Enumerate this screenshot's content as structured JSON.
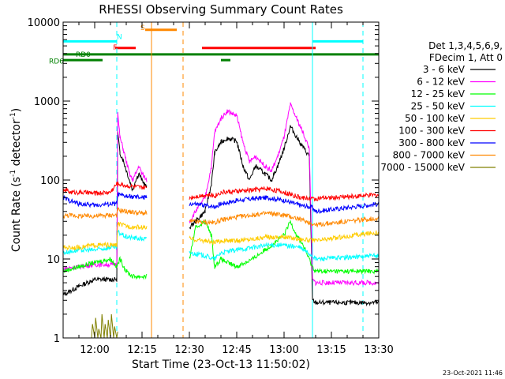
{
  "chart_data": {
    "type": "line",
    "title": "RHESSI Observing Summary Count Rates",
    "xlabel": "Start Time (23-Oct-13 11:50:02)",
    "ylabel_main": "Count Rate (s",
    "ylabel_exp1": "-1",
    "ylabel_mid": " detector",
    "ylabel_exp2": "-1",
    "ylabel_end": ")",
    "x_unit": "minutes since 11:50",
    "xlim": [
      0,
      100
    ],
    "ylim": [
      1,
      10000
    ],
    "y_scale": "log",
    "x_ticks": [
      {
        "label": "12:00",
        "x": 10
      },
      {
        "label": "12:15",
        "x": 25
      },
      {
        "label": "12:30",
        "x": 40
      },
      {
        "label": "12:45",
        "x": 55
      },
      {
        "label": "13:00",
        "x": 70
      },
      {
        "label": "13:15",
        "x": 85
      },
      {
        "label": "13:30",
        "x": 100
      }
    ],
    "y_ticks": [
      {
        "label": "1",
        "y": 1
      },
      {
        "label": "10",
        "y": 10
      },
      {
        "label": "100",
        "y": 100
      },
      {
        "label": "1000",
        "y": 1000
      },
      {
        "label": "10000",
        "y": 10000
      }
    ],
    "legend": {
      "header1": "Det 1,3,4,5,6,9,",
      "header2": "FDecim 1, Att 0",
      "position": "right"
    },
    "series": [
      {
        "name": "3 - 6 keV",
        "color": "#000000",
        "x": [
          0,
          5,
          10,
          17,
          17.3,
          18,
          19,
          21,
          22,
          23,
          24,
          25,
          26.5,
          38,
          38.5,
          40,
          42,
          45,
          47,
          48,
          50,
          52,
          55,
          57,
          59,
          61,
          64,
          66,
          68,
          70,
          72,
          74,
          76,
          78,
          79,
          80,
          100
        ],
        "y": [
          3.5,
          4.5,
          5.5,
          5.5,
          400,
          220,
          180,
          100,
          75,
          100,
          120,
          100,
          80,
          null,
          null,
          25,
          30,
          40,
          90,
          220,
          300,
          340,
          310,
          150,
          100,
          150,
          120,
          100,
          150,
          250,
          480,
          350,
          260,
          200,
          3,
          2.8,
          2.8
        ]
      },
      {
        "name": "6 - 12 keV",
        "color": "#ff00ff",
        "x": [
          0,
          5,
          10,
          17,
          17.3,
          18,
          19,
          21,
          22,
          23,
          24,
          25,
          26.5,
          38,
          38.5,
          40,
          42,
          45,
          47,
          48,
          50,
          52,
          55,
          57,
          59,
          61,
          64,
          66,
          68,
          70,
          72,
          74,
          76,
          78,
          79,
          80,
          100
        ],
        "y": [
          7.5,
          8,
          8.5,
          8.5,
          700,
          350,
          250,
          120,
          100,
          120,
          150,
          120,
          100,
          null,
          null,
          30,
          40,
          60,
          150,
          400,
          600,
          750,
          650,
          300,
          170,
          200,
          150,
          130,
          200,
          350,
          900,
          600,
          400,
          250,
          5.5,
          5,
          5
        ]
      },
      {
        "name": "12 - 25 keV",
        "color": "#00ff00",
        "x": [
          0,
          5,
          10,
          15,
          17,
          18,
          20,
          22,
          25,
          26.5,
          38,
          38.5,
          40,
          42,
          45,
          47,
          48,
          50,
          52,
          55,
          60,
          65,
          70,
          72,
          74,
          76,
          79,
          80,
          100
        ],
        "y": [
          7,
          8,
          9,
          10,
          8,
          10,
          7,
          6,
          6,
          6,
          null,
          null,
          10,
          25,
          30,
          20,
          8,
          10,
          9,
          8,
          10,
          14,
          20,
          30,
          20,
          15,
          8,
          7,
          7
        ]
      },
      {
        "name": "25 - 50 keV",
        "color": "#00ffff",
        "x": [
          0,
          5,
          10,
          15,
          17,
          17.3,
          20,
          25,
          26.5,
          38,
          38.5,
          40,
          45,
          48,
          50,
          55,
          60,
          65,
          70,
          75,
          79,
          80,
          100
        ],
        "y": [
          12,
          13,
          13,
          14,
          14,
          22,
          19,
          18,
          18,
          null,
          null,
          12,
          11,
          10,
          12,
          13,
          14,
          15,
          15,
          14,
          11,
          10,
          11
        ]
      },
      {
        "name": "50 - 100 keV",
        "color": "#ffcc00",
        "x": [
          0,
          5,
          10,
          15,
          17,
          17.3,
          20,
          25,
          26.5,
          38,
          38.5,
          40,
          45,
          48,
          50,
          55,
          60,
          65,
          70,
          75,
          79,
          80,
          100
        ],
        "y": [
          14,
          14,
          15,
          15,
          15,
          28,
          26,
          25,
          25,
          null,
          null,
          18,
          17,
          16,
          17,
          17,
          18,
          19,
          19,
          18,
          17,
          17,
          22
        ]
      },
      {
        "name": "100 - 300 keV",
        "color": "#ff0000",
        "x": [
          0,
          1,
          2,
          5,
          10,
          15,
          17,
          17.3,
          20,
          25,
          26.5,
          38,
          38.5,
          40,
          45,
          48,
          50,
          55,
          60,
          65,
          70,
          75,
          79,
          80,
          100
        ],
        "y": [
          70,
          75,
          70,
          70,
          68,
          70,
          90,
          90,
          85,
          80,
          80,
          null,
          null,
          60,
          65,
          63,
          70,
          72,
          75,
          78,
          70,
          60,
          58,
          58,
          65
        ]
      },
      {
        "name": "300 - 800 keV",
        "color": "#0000ff",
        "x": [
          0,
          2,
          5,
          10,
          15,
          17,
          17.3,
          20,
          25,
          26.5,
          38,
          38.5,
          40,
          45,
          48,
          50,
          55,
          60,
          65,
          70,
          75,
          79,
          80,
          100
        ],
        "y": [
          60,
          55,
          50,
          48,
          50,
          50,
          65,
          62,
          60,
          60,
          null,
          null,
          50,
          48,
          46,
          50,
          55,
          58,
          60,
          55,
          48,
          45,
          40,
          50
        ]
      },
      {
        "name": "800 - 7000 keV",
        "color": "#ff8800",
        "x": [
          0,
          2,
          5,
          10,
          15,
          17,
          17.3,
          20,
          25,
          26.5,
          38,
          38.5,
          40,
          45,
          48,
          50,
          55,
          60,
          65,
          70,
          75,
          79,
          80,
          100
        ],
        "y": [
          35,
          36,
          35,
          35,
          36,
          36,
          42,
          40,
          38,
          38,
          null,
          null,
          30,
          29,
          29,
          31,
          34,
          36,
          38,
          36,
          32,
          28,
          27,
          33
        ]
      },
      {
        "name": "7000 - 15000 keV",
        "color": "#808000",
        "x": [
          9,
          9.3,
          10,
          10.3,
          11,
          11.3,
          12,
          12.3,
          13,
          13.3,
          14,
          14.3,
          15,
          15.3,
          16,
          16.3,
          17,
          17.3
        ],
        "y": [
          1,
          1.5,
          1,
          1.8,
          1,
          1.3,
          1,
          2,
          1,
          1.5,
          1,
          1.7,
          1,
          2,
          1,
          1.4,
          1,
          1.2
        ]
      }
    ],
    "intervals": [
      {
        "label": "N",
        "color": "#00ffff",
        "x_start": 0,
        "x_end": 17,
        "x_label": 17,
        "level": 5700,
        "label_level": 6500
      },
      {
        "label": "N",
        "color": "#00ffff",
        "x_start": 79,
        "x_end": 95,
        "x_label": null,
        "level": 5700,
        "label_level": null
      },
      {
        "label": "F",
        "color": "#ff0000",
        "x_start": 16.5,
        "x_end": 23,
        "x_label": 15.8,
        "level": 4700,
        "label_level": 4800
      },
      {
        "label": "F",
        "color": "#ff0000",
        "x_start": 44,
        "x_end": 80,
        "x_label": null,
        "level": 4700,
        "label_level": null
      },
      {
        "label": "S",
        "color": "#ff8800",
        "x_start": 26,
        "x_end": 36,
        "x_label": 24.5,
        "level": 8000,
        "label_level": 8500
      },
      {
        "label": "RD0",
        "color": "#008000",
        "x_start": 0,
        "x_end": 100,
        "x_label": 4,
        "level": 3900,
        "label_level": 3900
      },
      {
        "label": "RD6",
        "color": "#008000",
        "x_start": 0,
        "x_end": 12.5,
        "x_label": -4.5,
        "level": 3300,
        "label_level": 3200
      },
      {
        "label": "RD6",
        "color": "#008000",
        "x_start": 50,
        "x_end": 53,
        "x_label": null,
        "level": 3300,
        "label_level": null
      }
    ],
    "vlines": [
      {
        "x": 0,
        "color": "#00ffff",
        "style": "dashed"
      },
      {
        "x": 17,
        "color": "#00ffff",
        "style": "dashed"
      },
      {
        "x": 79,
        "color": "#00ffff",
        "style": "solid"
      },
      {
        "x": 95,
        "color": "#00ffff",
        "style": "dashed"
      },
      {
        "x": 28,
        "color": "#ff8800",
        "style": "solid"
      },
      {
        "x": 38,
        "color": "#ff8800",
        "style": "dashed"
      }
    ],
    "footer": "23-Oct-2021 11:46",
    "grid": false
  }
}
